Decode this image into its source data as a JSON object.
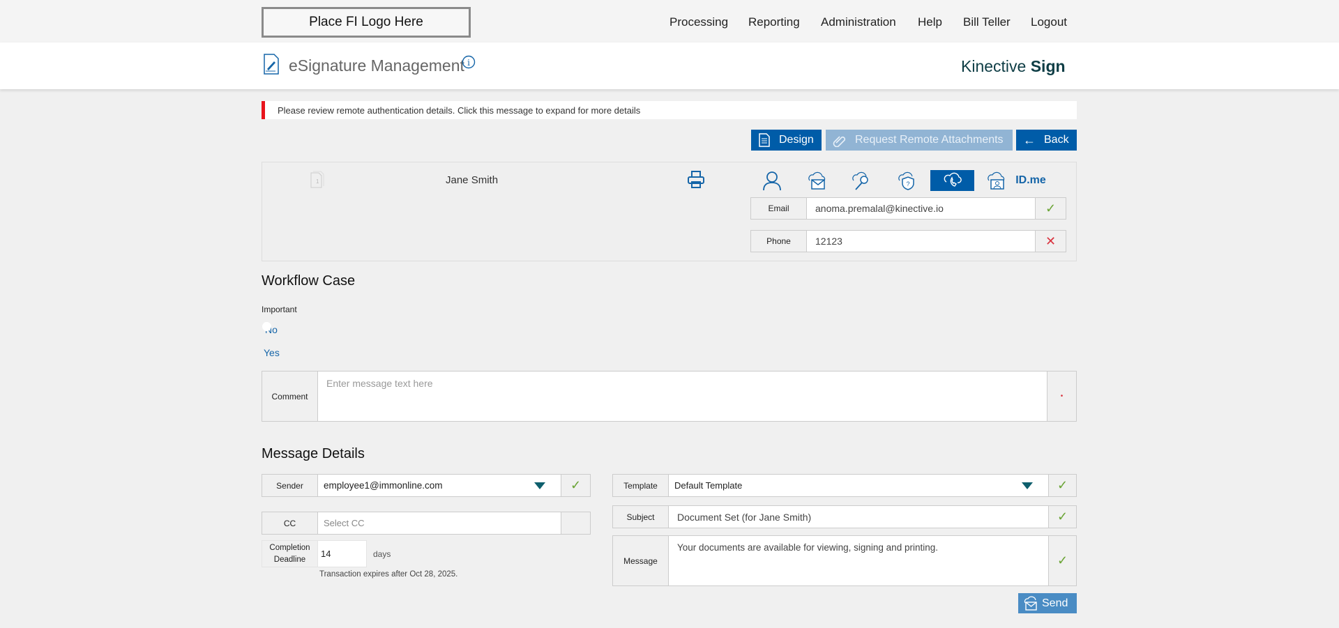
{
  "topbar": {
    "logo_text": "Place FI Logo Here",
    "nav": [
      "Processing",
      "Reporting",
      "Administration",
      "Help",
      "Bill Teller",
      "Logout"
    ]
  },
  "header": {
    "title": "eSignature Management",
    "brand_light": "Kinective",
    "brand_bold": "Sign"
  },
  "alert": {
    "text": "Please review remote authentication details. Click this message to expand for more details",
    "color": "#e8141c"
  },
  "actions": {
    "design": "Design",
    "request_attachments": "Request Remote Attachments",
    "back": "Back"
  },
  "signer": {
    "doc_count": "1",
    "name": "Jane Smith",
    "auth_methods": [
      "person",
      "cloud-email",
      "cloud-key",
      "cloud-shield-question",
      "cloud-phone",
      "cloud-id-card",
      "ID.me"
    ],
    "active_auth": "cloud-phone",
    "idme_label": "ID.me",
    "email_label": "Email",
    "email_value": "anoma.premalal@kinective.io",
    "email_status": "valid",
    "phone_label": "Phone",
    "phone_value": "12123",
    "phone_status": "invalid"
  },
  "workflow": {
    "heading": "Workflow Case",
    "important_label": "Important",
    "options": [
      "No",
      "Yes"
    ],
    "comment_label": "Comment",
    "comment_placeholder": "Enter message text here"
  },
  "message": {
    "heading": "Message Details",
    "sender_label": "Sender",
    "sender_value": "employee1@immonline.com",
    "cc_label": "CC",
    "cc_placeholder": "Select CC",
    "deadline_label": "Completion Deadline",
    "deadline_value": "14",
    "deadline_unit": "days",
    "expiry_text": "Transaction expires after Oct 28, 2025.",
    "template_label": "Template",
    "template_value": "Default Template",
    "subject_label": "Subject",
    "subject_value": "Document Set (for Jane Smith)",
    "message_label": "Message",
    "message_value": "Your documents are available for viewing, signing and printing.",
    "send": "Send"
  },
  "colors": {
    "primary": "#005ca8",
    "disabled": "#91b4d4",
    "send": "#4a8cc4",
    "valid": "#6aa435",
    "invalid": "#d9333f"
  }
}
